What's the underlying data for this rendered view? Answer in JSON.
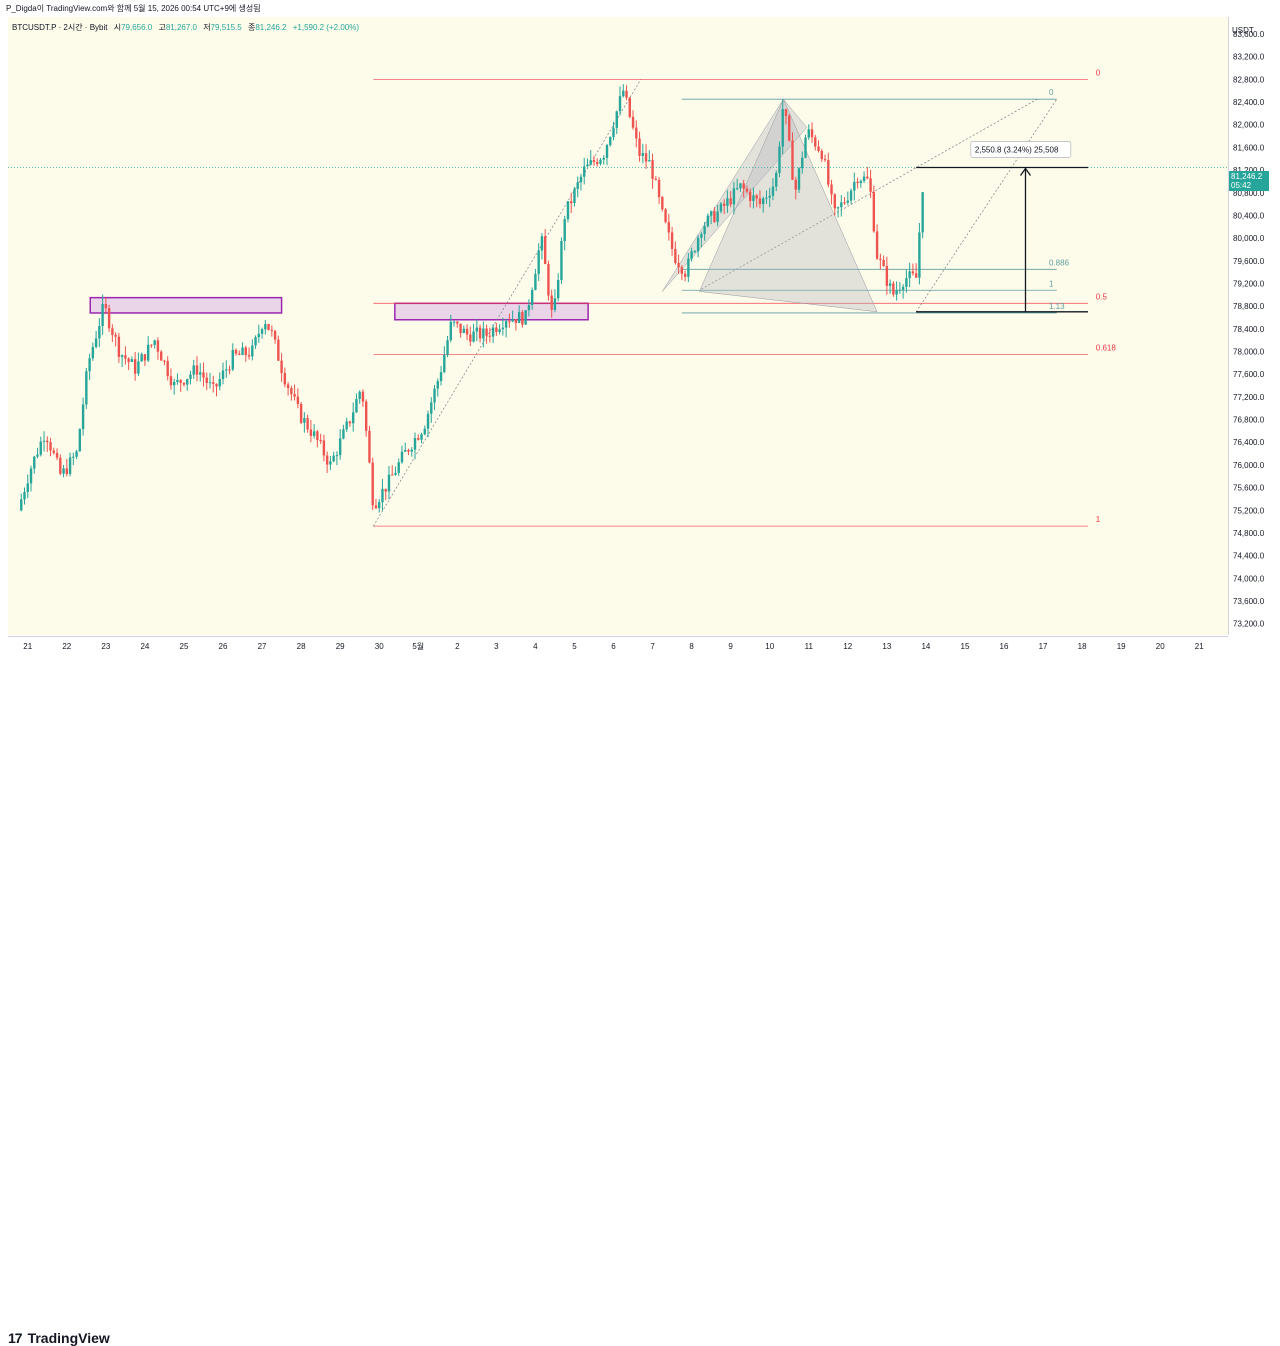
{
  "header": {
    "text": "P_Digda이 TradingView.com와 함께 5월 15, 2026 00:54 UTC+9에 생성됨"
  },
  "legend": {
    "symbol": "BTCUSDT.P · 2시간 · Bybit",
    "open_label": "시",
    "open": "79,656.0",
    "high_label": "고",
    "high": "81,267.0",
    "low_label": "저",
    "low": "79,515.5",
    "close_label": "종",
    "close": "81,246.2",
    "change": "+1,590.2 (+2.00%)"
  },
  "price_axis": {
    "unit": "USDT",
    "current_price": "81,246.2",
    "countdown": "05:42"
  },
  "brand": {
    "name": "TradingView",
    "mark": "17"
  },
  "colors": {
    "up": "#26a69a",
    "down": "#ef5350",
    "fib_red": "#f23645",
    "fib_teal": "#5f9ea0",
    "zone": "#e1bee7",
    "zone_border": "#9c27b0"
  },
  "chart_data": {
    "type": "candlestick",
    "symbol": "BTCUSDT.P",
    "interval": "2시간",
    "ylim": [
      73000,
      83900
    ],
    "y_ticks": [
      "73,200.0",
      "73,600.0",
      "74,000.0",
      "74,400.0",
      "74,800.0",
      "75,200.0",
      "75,600.0",
      "76,000.0",
      "76,400.0",
      "76,800.0",
      "77,200.0",
      "77,600.0",
      "78,000.0",
      "78,400.0",
      "78,800.0",
      "79,200.0",
      "79,600.0",
      "80,000.0",
      "80,400.0",
      "80,800.0",
      "81,200.0",
      "81,600.0",
      "82,000.0",
      "82,400.0",
      "82,800.0",
      "83,200.0",
      "83,600.0"
    ],
    "x_ticks": [
      "21",
      "22",
      "23",
      "24",
      "25",
      "26",
      "27",
      "28",
      "29",
      "30",
      "5월",
      "2",
      "3",
      "4",
      "5",
      "6",
      "7",
      "8",
      "9",
      "10",
      "11",
      "12",
      "13",
      "14",
      "15",
      "16",
      "17",
      "18",
      "19",
      "20",
      "21",
      "2"
    ],
    "anchors": [
      {
        "day": 0.0,
        "price": 75200
      },
      {
        "day": 0.3,
        "price": 75900
      },
      {
        "day": 0.7,
        "price": 76600
      },
      {
        "day": 1.1,
        "price": 75800
      },
      {
        "day": 1.5,
        "price": 76200
      },
      {
        "day": 1.8,
        "price": 77800
      },
      {
        "day": 2.2,
        "price": 78800
      },
      {
        "day": 2.6,
        "price": 78000
      },
      {
        "day": 3.0,
        "price": 77700
      },
      {
        "day": 3.5,
        "price": 78200
      },
      {
        "day": 4.0,
        "price": 77400
      },
      {
        "day": 4.6,
        "price": 77700
      },
      {
        "day": 5.0,
        "price": 77300
      },
      {
        "day": 5.5,
        "price": 77900
      },
      {
        "day": 6.0,
        "price": 78000
      },
      {
        "day": 6.3,
        "price": 78600
      },
      {
        "day": 6.5,
        "price": 78300
      },
      {
        "day": 6.8,
        "price": 77600
      },
      {
        "day": 7.2,
        "price": 76900
      },
      {
        "day": 7.6,
        "price": 76500
      },
      {
        "day": 8.0,
        "price": 76000
      },
      {
        "day": 8.5,
        "price": 76800
      },
      {
        "day": 8.8,
        "price": 77400
      },
      {
        "day": 9.1,
        "price": 75300
      },
      {
        "day": 9.5,
        "price": 75700
      },
      {
        "day": 9.9,
        "price": 76200
      },
      {
        "day": 10.4,
        "price": 76700
      },
      {
        "day": 10.8,
        "price": 77600
      },
      {
        "day": 11.1,
        "price": 78500
      },
      {
        "day": 11.5,
        "price": 78300
      },
      {
        "day": 12.0,
        "price": 78300
      },
      {
        "day": 12.5,
        "price": 78600
      },
      {
        "day": 13.0,
        "price": 78600
      },
      {
        "day": 13.4,
        "price": 80000
      },
      {
        "day": 13.7,
        "price": 78500
      },
      {
        "day": 14.0,
        "price": 80400
      },
      {
        "day": 14.5,
        "price": 81200
      },
      {
        "day": 15.0,
        "price": 81500
      },
      {
        "day": 15.5,
        "price": 82600
      },
      {
        "day": 15.9,
        "price": 81500
      },
      {
        "day": 16.2,
        "price": 81300
      },
      {
        "day": 16.5,
        "price": 80400
      },
      {
        "day": 16.8,
        "price": 79700
      },
      {
        "day": 17.1,
        "price": 79400
      },
      {
        "day": 17.5,
        "price": 80200
      },
      {
        "day": 18.0,
        "price": 80500
      },
      {
        "day": 18.5,
        "price": 80900
      },
      {
        "day": 19.0,
        "price": 80600
      },
      {
        "day": 19.4,
        "price": 81000
      },
      {
        "day": 19.6,
        "price": 82400
      },
      {
        "day": 19.9,
        "price": 80800
      },
      {
        "day": 20.2,
        "price": 81900
      },
      {
        "day": 20.6,
        "price": 81500
      },
      {
        "day": 20.9,
        "price": 80400
      },
      {
        "day": 21.2,
        "price": 80700
      },
      {
        "day": 21.5,
        "price": 81100
      },
      {
        "day": 21.8,
        "price": 81000
      },
      {
        "day": 22.0,
        "price": 79700
      },
      {
        "day": 22.4,
        "price": 79000
      },
      {
        "day": 22.7,
        "price": 79300
      },
      {
        "day": 23.0,
        "price": 79300
      },
      {
        "day": 23.2,
        "price": 81246
      }
    ],
    "fib_left": {
      "levels": [
        {
          "label": "0",
          "price": 82800
        },
        {
          "label": "0.5",
          "price": 78850
        },
        {
          "label": "0.618",
          "price": 77950
        },
        {
          "label": "1",
          "price": 74920
        }
      ]
    },
    "fib_right": {
      "levels": [
        {
          "label": "0",
          "price": 82450
        },
        {
          "label": "0.886",
          "price": 79450
        },
        {
          "label": "1",
          "price": 79080
        },
        {
          "label": "1.13",
          "price": 78680
        }
      ]
    },
    "zones": [
      {
        "x0": 1.85,
        "x1": 6.75,
        "top": 78950,
        "bottom": 78680
      },
      {
        "x0": 9.65,
        "x1": 14.6,
        "top": 78850,
        "bottom": 78560
      }
    ],
    "measure": {
      "label": "2,550.8 (3.24%) 25,508",
      "from": 78700,
      "to": 81246.2
    },
    "harmonic": [
      {
        "day": 14.2,
        "price": 82700
      },
      {
        "day": 16.5,
        "price": 79060
      },
      {
        "day": 19.6,
        "price": 82450
      },
      {
        "day": 22.0,
        "price": 78700
      },
      {
        "day": 20.2,
        "price": 81950
      }
    ],
    "current_price": 81246.2
  }
}
